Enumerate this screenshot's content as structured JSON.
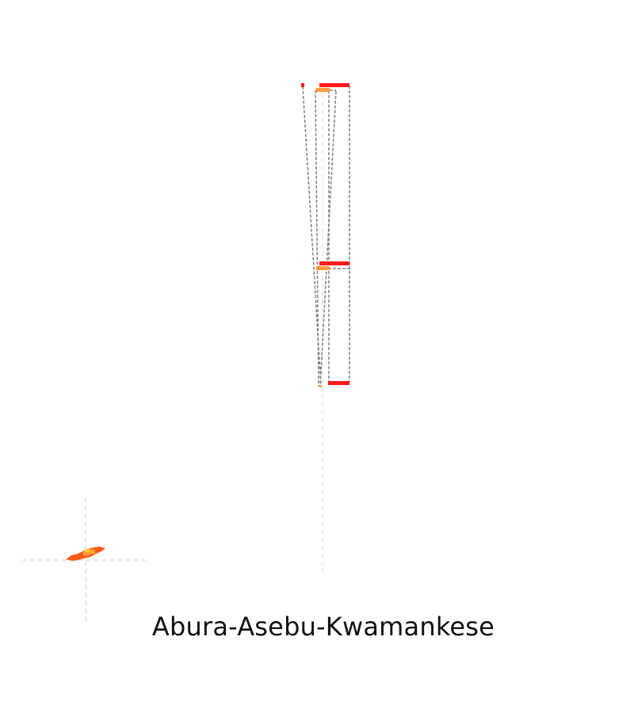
{
  "map": {
    "title": "Abura-Asebu-Kwamankese",
    "colors": {
      "highlight": "#ff1a1a",
      "district": "#ff9a3c",
      "region": "#ff5a1a",
      "leader": "#808080",
      "crosshair": "#d0d0d0"
    }
  }
}
